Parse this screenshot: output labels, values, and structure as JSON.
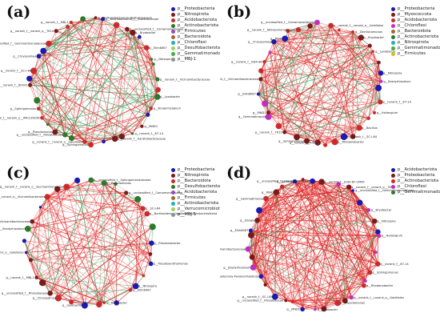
{
  "panels": [
    {
      "id": "a",
      "label": "(a)",
      "legend": [
        {
          "name": "p__Proteobacteria",
          "color": "#1a1ab0"
        },
        {
          "name": "p__Nitrospirota",
          "color": "#7a1a1a"
        },
        {
          "name": "p__Acidobacteriota",
          "color": "#cc2a2a"
        },
        {
          "name": "p__Actinobacteriota",
          "color": "#2a7a2a"
        },
        {
          "name": "p__Firmicutes",
          "color": "#9a4ac0"
        },
        {
          "name": "p__Bacteroidota",
          "color": "#a06a2a"
        },
        {
          "name": "p__Chloroflexi",
          "color": "#20b0c0"
        },
        {
          "name": "p__Desulfobacterota",
          "color": "#a0d060"
        },
        {
          "name": "p__Gemmatimonadota",
          "color": "#40b040"
        },
        {
          "name": "p__MBJ-1",
          "color": "#909090"
        }
      ],
      "node_labels": [
        "g__Methylobacterium-Methylorubrum",
        "g__Dechloromonas_f__Sutterellaceae",
        "g__unclassified_f__Comamonadaceae",
        "g__Bryobacter",
        "g__Ellin6067",
        "g__Nitrospira",
        "g__norank_f__Vicinamibacteraceae",
        "g__Lysobacter",
        "g__Bradyrhizobium",
        "g__MND1",
        "g__norank_f__67-14",
        "g__norank_f__Xanthobacteraceae",
        "g__Sphingomonas",
        "g__norank_f__norank_o__Gaiellales",
        "g__unclassified_f__Rhizobiaceae",
        "g__Pseudomonas",
        "g__norank_f__norank_o__IMCC26256",
        "g__Sphingomonas",
        "g__norank_f__BIrii41",
        "g__norank_f__SC-I-84",
        "g__Chryseolinea",
        "g__unclassified_f__Gemmatimonadaceae",
        "g__norank_f__norank_o__TK10",
        "g__norank_f__MBJ-1"
      ]
    },
    {
      "id": "b",
      "label": "(b)",
      "legend": [
        {
          "name": "p__Proteobacteria",
          "color": "#1a1ab0"
        },
        {
          "name": "p__Myxococcota",
          "color": "#7a1a1a"
        },
        {
          "name": "p__Acidobacteriota",
          "color": "#cc2a2a"
        },
        {
          "name": "p__Chloroflexi",
          "color": "#c030c0"
        },
        {
          "name": "p__Bacteroidota",
          "color": "#a06a2a"
        },
        {
          "name": "p__Actinobacteriota",
          "color": "#2a7a2a"
        },
        {
          "name": "p__Nitrospirota",
          "color": "#20b0c0"
        },
        {
          "name": "p__Gemmatimonadota",
          "color": "#40b040"
        },
        {
          "name": "p__Firmicutes",
          "color": "#d0c020"
        }
      ],
      "node_labels": [
        "g__unclassified_f__Comamonadaceae",
        "g__norank_f__norank_o__Gaiellales",
        "g__Dechloromonas",
        "g__Bryobacter",
        "g__Lysobacter",
        "g__Nitrospira",
        "g__Bradyrhizobium",
        "g__norank_f__67-14",
        "g__Haliangium",
        "g__Bacillus",
        "g__norank_f__SC-I-84",
        "g__Rhodanobacter",
        "g__norank_f__A4b",
        "g__Sphingomonas",
        "g__norank_f__TK10",
        "g__Gemmatimonas",
        "g__MND1",
        "g__Ellin6067",
        "g__norank_f__Vicinamibacteraceae",
        "g__norank_f__KD4-96",
        "g__Chryseolinea",
        "g__RB41",
        "g__norank_f__Nitrosomonadaceae"
      ]
    },
    {
      "id": "c",
      "label": "(c)",
      "legend": [
        {
          "name": "p__Proteobacteria",
          "color": "#1a1ab0"
        },
        {
          "name": "p__Nitrospirota",
          "color": "#7a1a1a"
        },
        {
          "name": "p__Bacteroidota",
          "color": "#cc2a2a"
        },
        {
          "name": "p__Desulfobacterota",
          "color": "#2a7a2a"
        },
        {
          "name": "p__Acidobacteriota",
          "color": "#9a4ac0"
        },
        {
          "name": "p__Firmicutes",
          "color": "#a06a2a"
        },
        {
          "name": "p__Actinobacteriota",
          "color": "#20b0c0"
        },
        {
          "name": "p__Verrucomicrobiota",
          "color": "#a0d060"
        },
        {
          "name": "p__MBJ-1",
          "color": "#909090"
        }
      ],
      "node_labels": [
        "g__unclassified_f__Sphingomonadaceae",
        "g__Pseudomonas",
        "g__unclassified_f__Comamonadaceae",
        "g__SC-I-84",
        "g__Burkholderia-Caballeronia-Paraburkholderia",
        "g__Rhodanobacter",
        "g__Pseudoxanthomonas",
        "g__Nitrospira",
        "g__Ellin6067",
        "g__Bryobacter",
        "g__Lysobacter",
        "g__Chryseolinea",
        "g__unclassified_f__Rhizobiaceae",
        "g__norank_f__MBJ-1",
        "g__norank_f__norank_o__Gaiellales",
        "g__Bradyrhizobium",
        "g__norank_f__Vicinamibacteraceae",
        "g__norank_f__norank_o__Vicinamibacterales",
        "g__norank_f__norank_o__Saccharimonadales"
      ]
    },
    {
      "id": "d",
      "label": "(d)",
      "legend": [
        {
          "name": "p__Acidobacteriota",
          "color": "#1a1ab0"
        },
        {
          "name": "p__Proteobacteria",
          "color": "#7a1a1a"
        },
        {
          "name": "p__Actinobacteriota",
          "color": "#cc2a2a"
        },
        {
          "name": "p__Chloroflexi",
          "color": "#c030c0"
        },
        {
          "name": "p__Gemmatimonadota",
          "color": "#2a7a2a"
        }
      ],
      "node_labels": [
        "g__unclassified_f__Oxalobacteraceae",
        "g__norank_f__JG30-KF-CM45",
        "g__norank_f__norank_o__TK10",
        "g__unclassified_f__Gemmatimonadaceae",
        "g__Bryobacter",
        "g__Nitrospira",
        "g__Haliangium",
        "g__norank_f__67-14",
        "g__Sphingomonas",
        "g__Rhodanobacter",
        "g__norank_f__norank_o__Gaiellales",
        "g__Pseudomonas",
        "g__Lysobacter",
        "g__MND1",
        "g__unclassified_f__Rhizobiaceae",
        "g__norank_f__SC-I-84",
        "g__Burkholderia-Caballeronia-Paraburkholderia",
        "g__Bradyrhizobium",
        "g__norank_f__Vicinamibacteraceae",
        "g__Ellin6067",
        "g__Dongia",
        "g__Gemmatimonas",
        "g__RB41",
        "g__Bacillus"
      ]
    }
  ]
}
